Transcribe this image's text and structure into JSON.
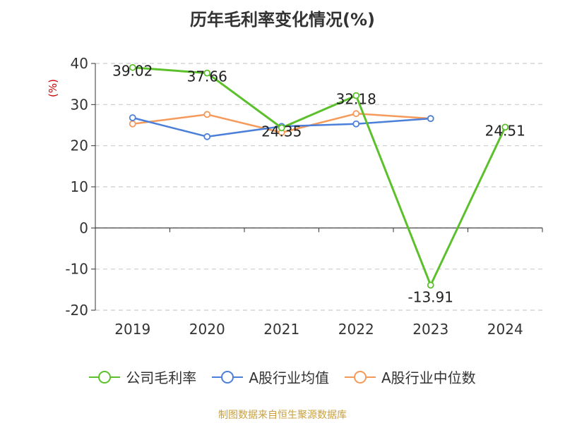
{
  "title": "历年毛利率变化情况(%)",
  "ylabel": "(%)",
  "footer": "制图数据来自恒生聚源数据库",
  "colors": {
    "company": "#5cc02c",
    "industry_avg": "#4b7fd9",
    "industry_median": "#f59a5a",
    "ylabel": "#cc0000",
    "footer": "#c8a040"
  },
  "chart_data": {
    "type": "line",
    "title": "历年毛利率变化情况(%)",
    "ylabel": "(%)",
    "xlabel": "",
    "categories": [
      "2019",
      "2020",
      "2021",
      "2022",
      "2023",
      "2024"
    ],
    "ylim": [
      -20,
      40
    ],
    "yticks": [
      40,
      30,
      20,
      10,
      0,
      -10,
      -20
    ],
    "grid": true,
    "legend_position": "bottom",
    "series": [
      {
        "name": "公司毛利率",
        "values": [
          39.02,
          37.66,
          24.35,
          32.18,
          -13.91,
          24.51
        ],
        "labels": [
          "39.02",
          "37.66",
          "24.35",
          "32.18",
          "-13.91",
          "24.51"
        ]
      },
      {
        "name": "A股行业均值",
        "values": [
          26.8,
          22.2,
          24.7,
          25.3,
          26.6,
          null
        ]
      },
      {
        "name": "A股行业中位数",
        "values": [
          25.3,
          27.6,
          23.2,
          27.8,
          26.6,
          null
        ]
      }
    ]
  }
}
